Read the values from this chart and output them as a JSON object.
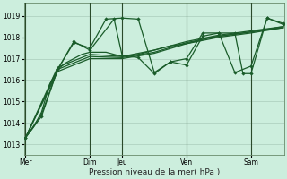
{
  "bg_color": "#cceedd",
  "grid_color": "#aaccbb",
  "line_color": "#1a5c2a",
  "title": "Pression niveau de la mer( hPa )",
  "ylabel_ticks": [
    1013,
    1014,
    1015,
    1016,
    1017,
    1018,
    1019
  ],
  "ylim": [
    1012.5,
    1019.6
  ],
  "day_labels": [
    "Mer",
    "Dim",
    "Jeu",
    "Ven",
    "Sam"
  ],
  "day_positions": [
    0,
    96,
    144,
    240,
    336
  ],
  "xlim": [
    -2,
    385
  ],
  "series_smooth1": {
    "x": [
      0,
      12,
      24,
      36,
      48,
      60,
      72,
      84,
      96,
      108,
      120,
      132,
      144,
      156,
      168,
      180,
      192,
      204,
      216,
      228,
      240,
      252,
      264,
      276,
      288,
      300,
      312,
      324,
      336,
      348,
      360,
      372,
      384
    ],
    "y": [
      1013.3,
      1013.8,
      1014.5,
      1015.8,
      1016.5,
      1016.8,
      1017.0,
      1017.2,
      1017.3,
      1017.3,
      1017.3,
      1017.2,
      1017.1,
      1017.15,
      1017.2,
      1017.3,
      1017.4,
      1017.5,
      1017.6,
      1017.65,
      1017.7,
      1017.8,
      1017.9,
      1018.0,
      1018.05,
      1018.1,
      1018.15,
      1018.2,
      1018.25,
      1018.3,
      1018.35,
      1018.4,
      1018.45
    ]
  },
  "series_smooth2": {
    "x": [
      0,
      48,
      96,
      144,
      192,
      240,
      288,
      336,
      384
    ],
    "y": [
      1013.3,
      1016.6,
      1017.2,
      1017.1,
      1017.4,
      1017.8,
      1018.1,
      1018.3,
      1018.5
    ]
  },
  "series_smooth3": {
    "x": [
      0,
      48,
      96,
      144,
      192,
      240,
      288,
      336,
      384
    ],
    "y": [
      1013.3,
      1016.5,
      1017.1,
      1017.05,
      1017.3,
      1017.75,
      1018.05,
      1018.25,
      1018.5
    ]
  },
  "series_smooth4": {
    "x": [
      0,
      48,
      96,
      144,
      192,
      240,
      288,
      336,
      384
    ],
    "y": [
      1013.3,
      1016.4,
      1017.0,
      1017.0,
      1017.25,
      1017.7,
      1018.0,
      1018.2,
      1018.45
    ]
  },
  "series_v1": {
    "x": [
      0,
      24,
      48,
      72,
      96,
      120,
      144,
      168,
      192,
      216,
      240,
      264,
      288,
      312,
      336,
      360,
      384
    ],
    "y": [
      1013.3,
      1014.4,
      1016.5,
      1017.75,
      1017.5,
      1018.85,
      1018.9,
      1018.85,
      1016.35,
      1016.85,
      1016.7,
      1018.05,
      1018.2,
      1016.35,
      1016.65,
      1018.9,
      1018.65
    ]
  },
  "series_v2": {
    "x": [
      0,
      24,
      48,
      72,
      96,
      132,
      144,
      168,
      192,
      216,
      240,
      264,
      288,
      312,
      324,
      336,
      360,
      384
    ],
    "y": [
      1013.3,
      1014.3,
      1016.5,
      1017.8,
      1017.4,
      1018.85,
      1017.15,
      1017.05,
      1016.3,
      1016.85,
      1017.0,
      1018.2,
      1018.2,
      1018.2,
      1016.3,
      1016.3,
      1018.9,
      1018.6
    ]
  }
}
